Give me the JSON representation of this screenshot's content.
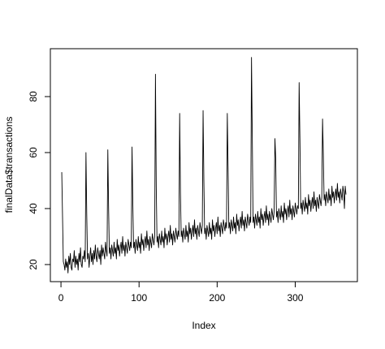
{
  "chart_data": {
    "type": "line",
    "x_label": "Index",
    "y_label": "finalData$transactions",
    "color": "#000000",
    "xlim": [
      -13.6,
      379.6
    ],
    "xticks": [
      0,
      100,
      200,
      300
    ],
    "ylim": [
      13.9,
      97.1
    ],
    "yticks": [
      20,
      40,
      60,
      80
    ],
    "values": [
      53,
      37,
      21,
      20,
      18,
      22,
      19,
      21,
      17,
      23,
      20,
      24,
      19,
      18,
      22,
      21,
      25,
      19,
      23,
      20,
      22,
      18,
      24,
      21,
      26,
      20,
      19,
      23,
      22,
      25,
      21,
      60,
      38,
      22,
      24,
      19,
      23,
      26,
      21,
      24,
      20,
      25,
      22,
      27,
      23,
      21,
      26,
      24,
      22,
      25,
      20,
      27,
      23,
      26,
      24,
      22,
      28,
      25,
      23,
      61,
      40,
      24,
      26,
      22,
      27,
      25,
      23,
      28,
      24,
      26,
      22,
      29,
      25,
      27,
      23,
      26,
      28,
      24,
      30,
      25,
      27,
      23,
      28,
      26,
      24,
      29,
      27,
      25,
      28,
      26,
      62,
      42,
      26,
      28,
      24,
      29,
      27,
      25,
      30,
      26,
      28,
      24,
      31,
      27,
      29,
      25,
      28,
      30,
      26,
      32,
      27,
      29,
      25,
      30,
      28,
      26,
      31,
      29,
      27,
      30,
      88,
      48,
      28,
      30,
      26,
      31,
      29,
      27,
      32,
      28,
      30,
      26,
      33,
      29,
      31,
      27,
      30,
      32,
      28,
      34,
      29,
      31,
      27,
      32,
      30,
      28,
      33,
      31,
      29,
      32,
      30,
      74,
      46,
      30,
      32,
      28,
      33,
      31,
      29,
      34,
      30,
      32,
      28,
      35,
      31,
      33,
      29,
      32,
      34,
      30,
      36,
      31,
      33,
      29,
      34,
      32,
      30,
      35,
      33,
      31,
      34,
      75,
      50,
      31,
      33,
      29,
      34,
      32,
      30,
      35,
      31,
      33,
      29,
      36,
      32,
      34,
      30,
      33,
      35,
      31,
      37,
      32,
      34,
      30,
      35,
      33,
      31,
      36,
      34,
      32,
      35,
      33,
      74,
      55,
      33,
      35,
      31,
      36,
      34,
      32,
      37,
      33,
      35,
      31,
      38,
      34,
      36,
      32,
      35,
      37,
      33,
      39,
      34,
      36,
      32,
      37,
      35,
      33,
      38,
      36,
      34,
      37,
      35,
      94,
      66,
      35,
      37,
      33,
      38,
      36,
      34,
      39,
      35,
      37,
      33,
      40,
      36,
      38,
      34,
      37,
      39,
      35,
      41,
      36,
      38,
      34,
      39,
      37,
      35,
      40,
      38,
      36,
      39,
      65,
      58,
      37,
      39,
      35,
      40,
      38,
      36,
      41,
      37,
      39,
      35,
      42,
      38,
      40,
      36,
      39,
      41,
      37,
      43,
      38,
      40,
      36,
      41,
      39,
      37,
      42,
      40,
      38,
      41,
      40,
      85,
      65,
      40,
      42,
      38,
      43,
      41,
      39,
      44,
      40,
      42,
      38,
      45,
      41,
      43,
      39,
      42,
      44,
      40,
      46,
      41,
      43,
      39,
      44,
      42,
      40,
      45,
      43,
      41,
      44,
      72,
      59,
      43,
      45,
      41,
      46,
      44,
      42,
      47,
      43,
      45,
      41,
      48,
      44,
      46,
      42,
      45,
      47,
      43,
      49,
      44,
      46,
      42,
      47,
      45,
      43,
      48,
      46,
      40,
      48,
      45
    ]
  }
}
